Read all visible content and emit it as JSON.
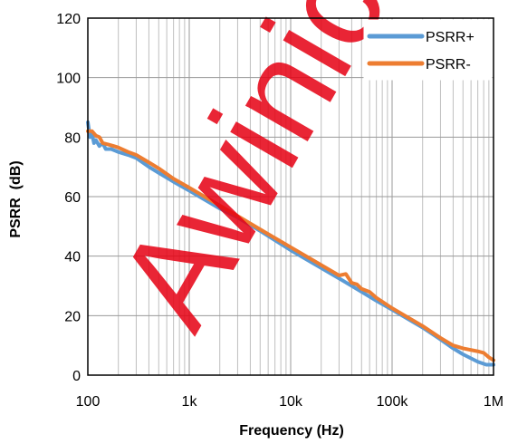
{
  "watermark": {
    "text": "Awinic",
    "color": "#e60012"
  },
  "chart_data": {
    "type": "line",
    "title": "",
    "xlabel": "Frequency (Hz)",
    "ylabel": "PSRR  (dB)",
    "xscale": "log",
    "xlim": [
      100,
      1000000
    ],
    "ylim": [
      0,
      120
    ],
    "x_ticks": [
      100,
      1000,
      10000,
      100000,
      1000000
    ],
    "x_tick_labels": [
      "100",
      "1k",
      "10k",
      "100k",
      "1M"
    ],
    "y_ticks": [
      0,
      20,
      40,
      60,
      80,
      100,
      120
    ],
    "y_tick_labels": [
      "0",
      "20",
      "40",
      "60",
      "80",
      "100",
      "120"
    ],
    "grid": true,
    "minor_grid_x": true,
    "legend_position": "top-right",
    "series": [
      {
        "name": "PSRR+",
        "color": "#5b9bd5",
        "points": [
          [
            100,
            85
          ],
          [
            105,
            80
          ],
          [
            110,
            81
          ],
          [
            115,
            78
          ],
          [
            120,
            79
          ],
          [
            130,
            77
          ],
          [
            140,
            78
          ],
          [
            150,
            76
          ],
          [
            170,
            76
          ],
          [
            200,
            75
          ],
          [
            250,
            74
          ],
          [
            300,
            73
          ],
          [
            400,
            70
          ],
          [
            500,
            68
          ],
          [
            700,
            65
          ],
          [
            1000,
            62
          ],
          [
            2000,
            56
          ],
          [
            3000,
            53
          ],
          [
            5000,
            48.5
          ],
          [
            10000,
            42
          ],
          [
            20000,
            36
          ],
          [
            30000,
            32.5
          ],
          [
            40000,
            30
          ],
          [
            50000,
            28
          ],
          [
            70000,
            25
          ],
          [
            100000,
            22
          ],
          [
            200000,
            16
          ],
          [
            300000,
            12
          ],
          [
            400000,
            9
          ],
          [
            500000,
            7
          ],
          [
            700000,
            4.5
          ],
          [
            850000,
            3.5
          ],
          [
            1000000,
            3.5
          ]
        ]
      },
      {
        "name": "PSRR-",
        "color": "#ed7d31",
        "points": [
          [
            100,
            82
          ],
          [
            110,
            82
          ],
          [
            120,
            80.5
          ],
          [
            130,
            80
          ],
          [
            140,
            78
          ],
          [
            160,
            77.5
          ],
          [
            180,
            77
          ],
          [
            200,
            76.5
          ],
          [
            250,
            75
          ],
          [
            300,
            74
          ],
          [
            400,
            71.5
          ],
          [
            500,
            69.5
          ],
          [
            700,
            66
          ],
          [
            1000,
            63
          ],
          [
            2000,
            57
          ],
          [
            3000,
            53.5
          ],
          [
            5000,
            49
          ],
          [
            10000,
            43
          ],
          [
            20000,
            37
          ],
          [
            30000,
            33.5
          ],
          [
            35000,
            34
          ],
          [
            40000,
            31
          ],
          [
            45000,
            30.5
          ],
          [
            50000,
            29
          ],
          [
            60000,
            28
          ],
          [
            70000,
            26
          ],
          [
            100000,
            22.5
          ],
          [
            200000,
            16.5
          ],
          [
            300000,
            12.5
          ],
          [
            400000,
            10
          ],
          [
            500000,
            9
          ],
          [
            700000,
            8
          ],
          [
            800000,
            7.5
          ],
          [
            900000,
            6
          ],
          [
            1000000,
            5
          ]
        ]
      }
    ]
  }
}
